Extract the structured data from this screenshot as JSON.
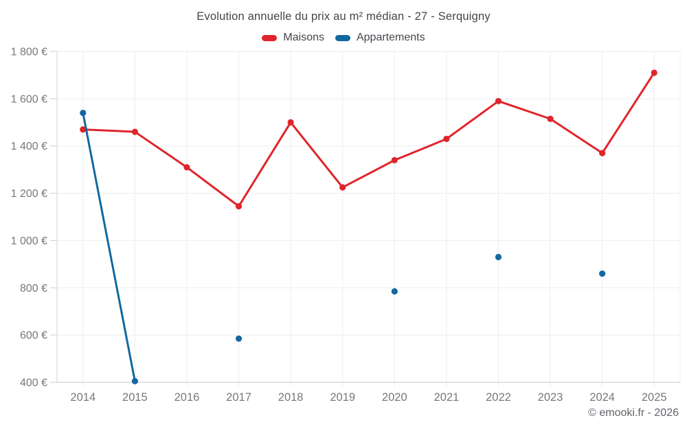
{
  "chart_data": {
    "type": "line",
    "title": "Evolution annuelle du prix au m² médian - 27 - Serquigny",
    "categories": [
      "2014",
      "2015",
      "2016",
      "2017",
      "2018",
      "2019",
      "2020",
      "2021",
      "2022",
      "2023",
      "2024",
      "2025"
    ],
    "series": [
      {
        "name": "Maisons",
        "color": "#e0242b",
        "values": [
          1470,
          1460,
          1310,
          1145,
          1500,
          1225,
          1340,
          1430,
          1590,
          1515,
          1370,
          1710
        ]
      },
      {
        "name": "Appartements",
        "color": "#1268a0",
        "values": [
          1540,
          405,
          null,
          585,
          null,
          null,
          785,
          null,
          930,
          null,
          860,
          null
        ]
      }
    ],
    "xlabel": "",
    "ylabel": "",
    "ylim": [
      400,
      1800
    ],
    "grid": true,
    "legend_position": "top",
    "yticks": [
      {
        "value": 400,
        "label": "400 €"
      },
      {
        "value": 600,
        "label": "600 €"
      },
      {
        "value": 800,
        "label": "800 €"
      },
      {
        "value": 1000,
        "label": "1 000 €"
      },
      {
        "value": 1200,
        "label": "1 200 €"
      },
      {
        "value": 1400,
        "label": "1 400 €"
      },
      {
        "value": 1600,
        "label": "1 600 €"
      },
      {
        "value": 1800,
        "label": "1 800 €"
      }
    ]
  },
  "footer": {
    "copyright": "© emooki.fr - 2026"
  }
}
